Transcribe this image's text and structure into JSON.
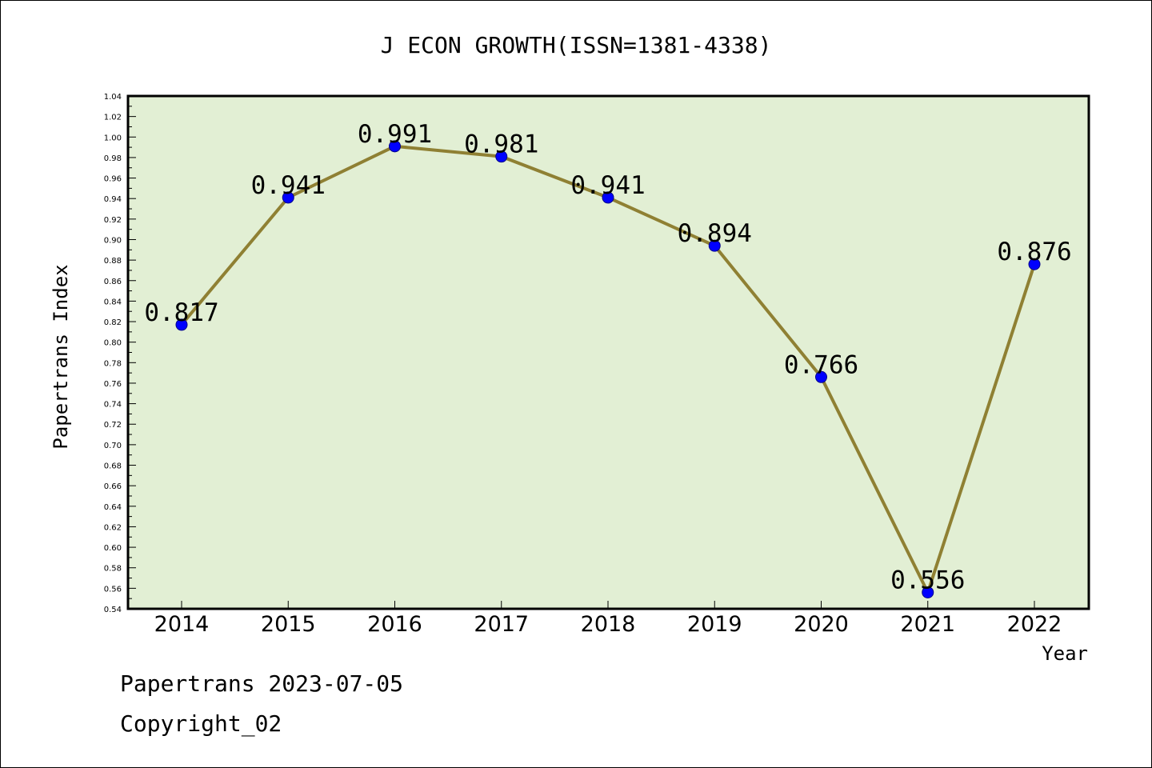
{
  "chart_data": {
    "type": "line",
    "title": "J ECON GROWTH(ISSN=1381-4338)",
    "xlabel": "Year",
    "ylabel": "Papertrans Index",
    "categories": [
      "2014",
      "2015",
      "2016",
      "2017",
      "2018",
      "2019",
      "2020",
      "2021",
      "2022"
    ],
    "series": [
      {
        "values": [
          0.817,
          0.941,
          0.991,
          0.981,
          0.941,
          0.894,
          0.766,
          0.556,
          0.876
        ]
      }
    ],
    "data_labels": [
      "0.817",
      "0.941",
      "0.991",
      "0.981",
      "0.941",
      "0.894",
      "0.766",
      "0.556",
      "0.876"
    ],
    "ylim": [
      0.54,
      1.04
    ],
    "ytick_step": 0.02,
    "ytick_decimals": 2,
    "grid": false,
    "legend": "none",
    "colors": {
      "plot_background": "#e2efd4",
      "line": "#8f8033",
      "marker": "#0000ff",
      "axis": "#000000"
    }
  },
  "footer": {
    "date_line": "Papertrans 2023-07-05",
    "copyright": "Copyright_02"
  }
}
